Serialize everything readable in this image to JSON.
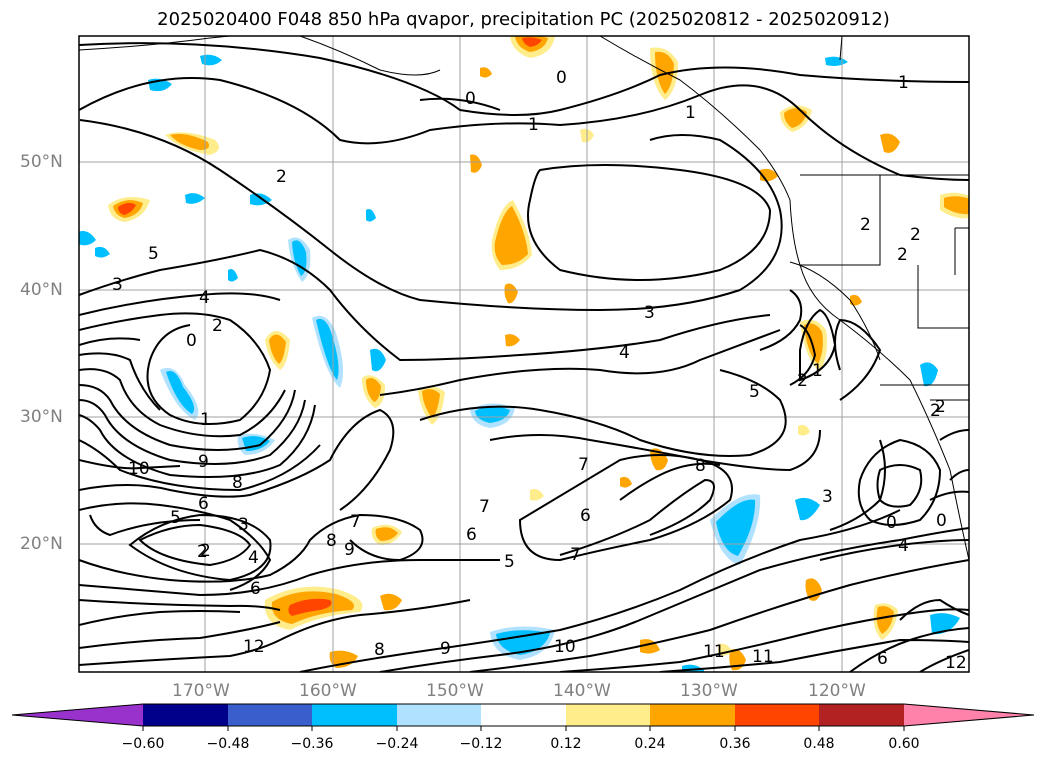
{
  "title": "2025020400 F048 850 hPa qvapor, precipitation PC (2025020812 - 2025020912)",
  "colors": {
    "frame": "#000000",
    "grid": "#a0a0a0",
    "contour": "#000000",
    "coast": "#000000",
    "tick_label": "#808080"
  },
  "latitude_labels": [
    "50°N",
    "40°N",
    "30°N",
    "20°N"
  ],
  "longitude_labels": [
    "170°W",
    "160°W",
    "150°W",
    "140°W",
    "130°W",
    "120°W"
  ],
  "colorbar": {
    "segments": [
      {
        "range": "< -0.60",
        "color": "#9932cc"
      },
      {
        "range": "-0.60 to -0.48",
        "color": "#00008b"
      },
      {
        "range": "-0.48 to -0.36",
        "color": "#3a5fcd"
      },
      {
        "range": "-0.36 to -0.24",
        "color": "#00bfff"
      },
      {
        "range": "-0.24 to -0.12",
        "color": "#b0e2ff"
      },
      {
        "range": "-0.12 to 0.12",
        "color": "#ffffff"
      },
      {
        "range": "0.12 to 0.24",
        "color": "#ffec8b"
      },
      {
        "range": "0.24 to 0.36",
        "color": "#ffa500"
      },
      {
        "range": "0.36 to 0.48",
        "color": "#ff4500"
      },
      {
        "range": "0.48 to 0.60",
        "color": "#b22222"
      },
      {
        "range": "> 0.60",
        "color": "#ff82ab"
      }
    ],
    "tick_labels": [
      "−0.60",
      "−0.48",
      "−0.36",
      "−0.24",
      "−0.12",
      "0.12",
      "0.24",
      "0.36",
      "0.48",
      "0.60"
    ]
  },
  "contour_labels": [
    "1",
    "0",
    "1",
    "2",
    "0",
    "1",
    "2",
    "3",
    "4",
    "5",
    "3",
    "4",
    "2",
    "0",
    "1",
    "2",
    "3",
    "4",
    "5",
    "6",
    "7",
    "8",
    "9",
    "10",
    "11",
    "12",
    "6",
    "7",
    "8",
    "9",
    "2",
    "1",
    "2",
    "2",
    "3",
    "0",
    "0",
    "4",
    "5",
    "6",
    "7",
    "8",
    "9",
    "10",
    "11",
    "12",
    "5",
    "6",
    "7",
    "8",
    "2",
    "2",
    "2",
    "6"
  ]
}
